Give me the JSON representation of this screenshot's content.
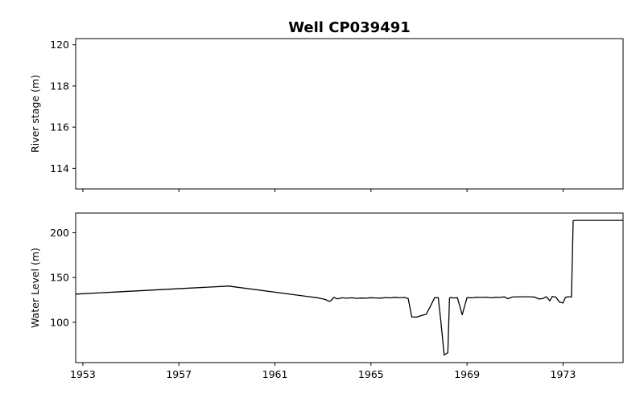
{
  "chart_data": {
    "type": "line",
    "title": "Well CP039491",
    "panels": [
      {
        "name": "river-stage",
        "ylabel": "River stage (m)",
        "ylim": [
          113,
          120.3
        ],
        "yticks": [
          114,
          116,
          118,
          120
        ],
        "xlim": [
          1952.7,
          1975.5
        ],
        "xticks": [
          1953,
          1957,
          1961,
          1965,
          1969,
          1973
        ],
        "show_xtick_labels": false,
        "grid": false,
        "series": []
      },
      {
        "name": "water-level",
        "ylabel": "Water Level (m)",
        "ylim": [
          55,
          222
        ],
        "yticks": [
          100,
          150,
          200
        ],
        "xlim": [
          1952.7,
          1975.5
        ],
        "xticks": [
          1953,
          1957,
          1961,
          1965,
          1969,
          1973
        ],
        "show_xtick_labels": true,
        "grid": false,
        "series": [
          {
            "color": "#000000",
            "x": [
              1952.7,
              1959.07,
              1962.75,
              1963.1,
              1963.25,
              1963.32,
              1963.45,
              1963.6,
              1963.8,
              1964.0,
              1964.2,
              1964.4,
              1964.6,
              1964.8,
              1965.0,
              1965.2,
              1965.4,
              1965.6,
              1965.8,
              1966.0,
              1966.2,
              1966.4,
              1966.55,
              1966.7,
              1966.9,
              1967.1,
              1967.3,
              1967.45,
              1967.65,
              1967.8,
              1967.9,
              1968.05,
              1968.2,
              1968.27,
              1968.33,
              1968.4,
              1968.6,
              1968.8,
              1969.0,
              1969.2,
              1969.4,
              1969.6,
              1969.8,
              1970.0,
              1970.2,
              1970.4,
              1970.55,
              1970.7,
              1970.9,
              1971.2,
              1971.5,
              1971.8,
              1972.0,
              1972.15,
              1972.3,
              1972.45,
              1972.55,
              1972.7,
              1972.85,
              1973.0,
              1973.1,
              1973.2,
              1973.35,
              1973.42,
              1973.6,
              1974.0,
              1974.5,
              1975.0,
              1975.5
            ],
            "y": [
              131.5,
              140.5,
              127.5,
              125.5,
              123.5,
              123.8,
              127.8,
              126.2,
              127.4,
              126.9,
              127.4,
              126.7,
              127.1,
              126.9,
              127.5,
              127.2,
              127.0,
              127.6,
              127.3,
              127.9,
              127.4,
              127.8,
              126.5,
              106.0,
              105.8,
              107.5,
              109.0,
              116.5,
              127.5,
              127.6,
              104.0,
              63.5,
              66.0,
              127.0,
              127.9,
              127.2,
              127.5,
              108.5,
              127.5,
              127.4,
              127.9,
              127.8,
              128.1,
              127.4,
              127.9,
              127.8,
              128.4,
              126.4,
              128.3,
              128.5,
              128.5,
              128.3,
              126.0,
              126.5,
              128.5,
              124.0,
              128.8,
              128.2,
              122.5,
              121.5,
              127.8,
              128.5,
              128.3,
              213.5,
              213.8,
              213.8,
              213.8,
              213.8,
              213.8
            ]
          }
        ]
      }
    ]
  }
}
